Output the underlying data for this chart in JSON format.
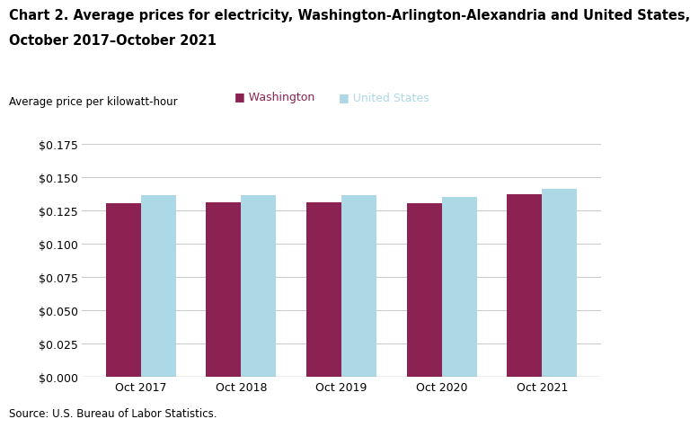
{
  "title_line1": "Chart 2. Average prices for electricity, Washington-Arlington-Alexandria and United States,",
  "title_line2": "October 2017–October 2021",
  "ylabel": "Average price per kilowatt-hour",
  "source": "Source: U.S. Bureau of Labor Statistics.",
  "categories": [
    "Oct 2017",
    "Oct 2018",
    "Oct 2019",
    "Oct 2020",
    "Oct 2021"
  ],
  "washington_values": [
    0.1302,
    0.1308,
    0.1308,
    0.1302,
    0.1372
  ],
  "us_values": [
    0.1362,
    0.1363,
    0.1363,
    0.1353,
    0.141
  ],
  "washington_color": "#8B2252",
  "us_color": "#ADD8E6",
  "washington_label": "Washington",
  "us_label": "United States",
  "ylim": [
    0,
    0.175
  ],
  "yticks": [
    0.0,
    0.025,
    0.05,
    0.075,
    0.1,
    0.125,
    0.15,
    0.175
  ],
  "bar_width": 0.35,
  "background_color": "#ffffff",
  "grid_color": "#cccccc",
  "title_fontsize": 10.5,
  "axis_label_fontsize": 8.5,
  "tick_fontsize": 9,
  "legend_fontsize": 9,
  "source_fontsize": 8.5
}
